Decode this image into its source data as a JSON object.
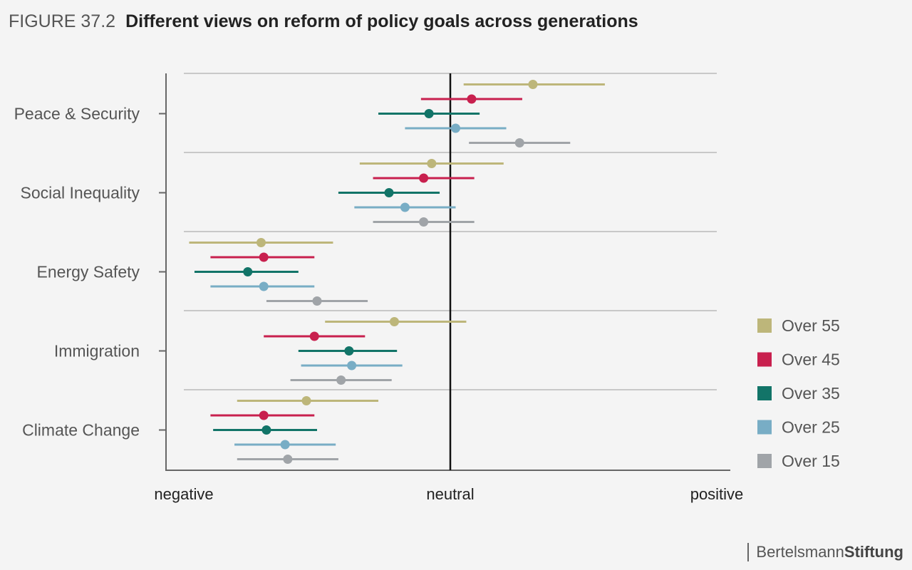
{
  "figure_label": "FIGURE 37.2",
  "brand": {
    "part1": "Bertelsmann",
    "part2": "Stiftung"
  },
  "colors": {
    "Over 55": "#bdb67a",
    "Over 45": "#c8204e",
    "Over 35": "#127468",
    "Over 25": "#78adc5",
    "Over 15": "#a0a4a8"
  },
  "chart_data": {
    "type": "scatter",
    "title": "Different views on reform of policy goals across generations",
    "orientation": "horizontal-dot-with-range",
    "xlim": [
      -1,
      1
    ],
    "x_tick_labels": [
      "negative",
      "neutral",
      "positive"
    ],
    "x_tick_values": [
      -1,
      0,
      1
    ],
    "categories": [
      "Peace & Security",
      "Social Inequality",
      "Energy Safety",
      "Immigration",
      "Climate Change"
    ],
    "legend_position": "right",
    "series": [
      {
        "name": "Over 55",
        "values": [
          0.31,
          -0.07,
          -0.71,
          -0.21,
          -0.54
        ],
        "low": [
          0.05,
          -0.34,
          -0.98,
          -0.47,
          -0.8
        ],
        "high": [
          0.58,
          0.2,
          -0.44,
          0.06,
          -0.27
        ]
      },
      {
        "name": "Over 45",
        "values": [
          0.08,
          -0.1,
          -0.7,
          -0.51,
          -0.7
        ],
        "low": [
          -0.11,
          -0.29,
          -0.9,
          -0.7,
          -0.9
        ],
        "high": [
          0.27,
          0.09,
          -0.51,
          -0.32,
          -0.51
        ]
      },
      {
        "name": "Over 35",
        "values": [
          -0.08,
          -0.23,
          -0.76,
          -0.38,
          -0.69
        ],
        "low": [
          -0.27,
          -0.42,
          -0.96,
          -0.57,
          -0.89
        ],
        "high": [
          0.11,
          -0.04,
          -0.57,
          -0.2,
          -0.5
        ]
      },
      {
        "name": "Over 25",
        "values": [
          0.02,
          -0.17,
          -0.7,
          -0.37,
          -0.62
        ],
        "low": [
          -0.17,
          -0.36,
          -0.9,
          -0.56,
          -0.81
        ],
        "high": [
          0.21,
          0.02,
          -0.51,
          -0.18,
          -0.43
        ]
      },
      {
        "name": "Over 15",
        "values": [
          0.26,
          -0.1,
          -0.5,
          -0.41,
          -0.61
        ],
        "low": [
          0.07,
          -0.29,
          -0.69,
          -0.6,
          -0.8
        ],
        "high": [
          0.45,
          0.09,
          -0.31,
          -0.22,
          -0.42
        ]
      }
    ]
  }
}
